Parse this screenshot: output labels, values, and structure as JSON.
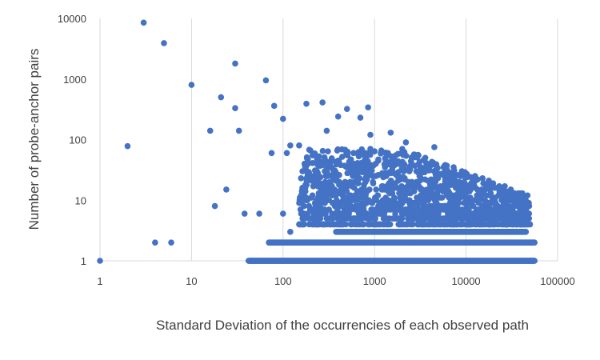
{
  "chart_data": {
    "type": "scatter",
    "title": "",
    "xlabel": "Standard Deviation of the occurrencies of each observed path",
    "ylabel": "Number of probe-anchor pairs",
    "x_scale": "log",
    "y_scale": "log",
    "xlim": [
      1,
      100000
    ],
    "ylim": [
      1,
      10000
    ],
    "x_ticks": [
      "1",
      "10",
      "100",
      "1000",
      "10000",
      "100000"
    ],
    "y_ticks": [
      "1",
      "10",
      "100",
      "1000",
      "10000"
    ],
    "grid": "vertical",
    "legend": "none",
    "marker_color": "#4472C4",
    "series": [
      {
        "points": [
          [
            1,
            1
          ],
          [
            2,
            78
          ],
          [
            3,
            8500
          ],
          [
            4,
            2
          ],
          [
            5,
            3900
          ],
          [
            6,
            2
          ],
          [
            10,
            800
          ],
          [
            16,
            140
          ],
          [
            18,
            8
          ],
          [
            21,
            500
          ],
          [
            24,
            15
          ],
          [
            30,
            1800
          ],
          [
            30,
            330
          ],
          [
            33,
            140
          ],
          [
            38,
            6
          ],
          [
            55,
            6
          ],
          [
            65,
            950
          ],
          [
            75,
            60
          ],
          [
            80,
            360
          ],
          [
            100,
            220
          ],
          [
            100,
            6
          ],
          [
            110,
            60
          ],
          [
            120,
            80
          ],
          [
            150,
            80
          ],
          [
            180,
            390
          ],
          [
            270,
            410
          ],
          [
            300,
            140
          ],
          [
            400,
            240
          ],
          [
            500,
            320
          ],
          [
            700,
            230
          ],
          [
            850,
            340
          ],
          [
            900,
            120
          ],
          [
            1500,
            130
          ],
          [
            2200,
            90
          ],
          [
            3000,
            55
          ],
          [
            4500,
            75
          ],
          [
            6000,
            30
          ],
          [
            9000,
            30
          ],
          [
            14000,
            12
          ],
          [
            20000,
            9
          ],
          [
            30000,
            7
          ],
          [
            40000,
            3
          ],
          [
            50000,
            2
          ],
          [
            90,
            2
          ],
          [
            120,
            3
          ],
          [
            150,
            4
          ],
          [
            200,
            2
          ],
          [
            250,
            6
          ],
          [
            300,
            12
          ],
          [
            350,
            25
          ],
          [
            400,
            45
          ],
          [
            450,
            15
          ],
          [
            500,
            8
          ],
          [
            600,
            20
          ],
          [
            650,
            60
          ],
          [
            700,
            35
          ],
          [
            800,
            12
          ],
          [
            900,
            70
          ],
          [
            1000,
            25
          ],
          [
            1100,
            45
          ],
          [
            1200,
            15
          ],
          [
            1300,
            35
          ],
          [
            1500,
            18
          ],
          [
            1700,
            40
          ],
          [
            1900,
            22
          ],
          [
            2100,
            14
          ],
          [
            2400,
            30
          ],
          [
            2700,
            18
          ],
          [
            3100,
            25
          ],
          [
            3500,
            12
          ],
          [
            4000,
            20
          ],
          [
            4600,
            10
          ],
          [
            5200,
            16
          ],
          [
            6000,
            8
          ],
          [
            7000,
            12
          ],
          [
            8000,
            6
          ],
          [
            9500,
            9
          ],
          [
            11000,
            5
          ],
          [
            13000,
            7
          ],
          [
            16000,
            4
          ],
          [
            19000,
            5
          ],
          [
            23000,
            3
          ],
          [
            28000,
            4
          ],
          [
            35000,
            3
          ],
          [
            45000,
            2
          ],
          [
            55000,
            2
          ]
        ]
      }
    ]
  }
}
